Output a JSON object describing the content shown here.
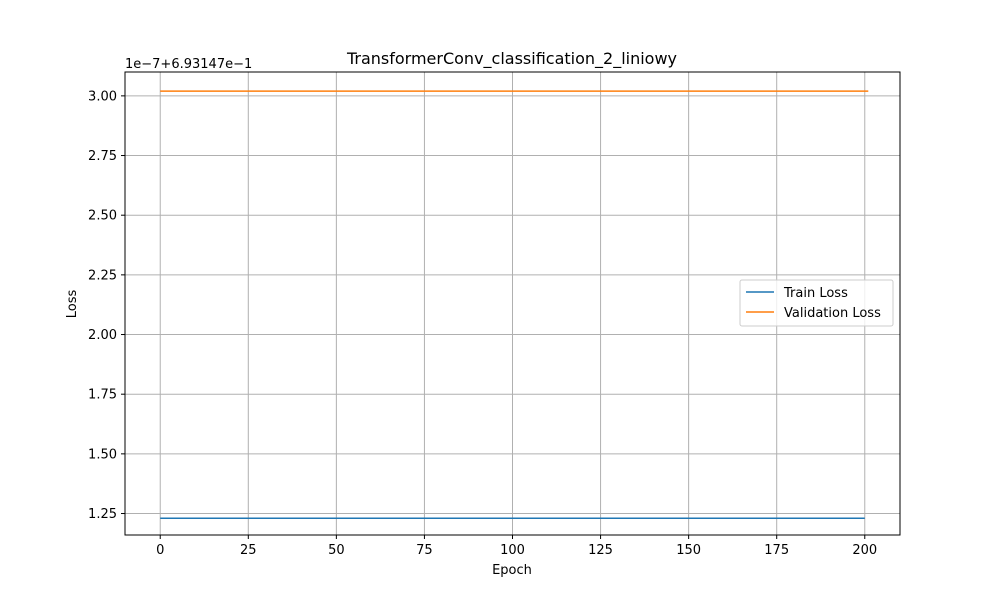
{
  "chart_data": {
    "type": "line",
    "title": "TransformerConv_classification_2_liniowy",
    "xlabel": "Epoch",
    "ylabel": "Loss",
    "y_offset_label": "1e−7+6.93147e−1",
    "xlim": [
      -10,
      210
    ],
    "ylim": [
      1.16,
      3.1
    ],
    "x_ticks": [
      0,
      25,
      50,
      75,
      100,
      125,
      150,
      175,
      200
    ],
    "x_tick_labels": [
      "0",
      "25",
      "50",
      "75",
      "100",
      "125",
      "150",
      "175",
      "200"
    ],
    "y_ticks": [
      1.25,
      1.5,
      1.75,
      2.0,
      2.25,
      2.5,
      2.75,
      3.0
    ],
    "y_tick_labels": [
      "1.25",
      "1.50",
      "1.75",
      "2.00",
      "2.25",
      "2.50",
      "2.75",
      "3.00"
    ],
    "grid": true,
    "legend_position": "center-right",
    "series": [
      {
        "name": "Train Loss",
        "color": "#1f77b4",
        "x": [
          0,
          200
        ],
        "y": [
          1.23,
          1.23
        ]
      },
      {
        "name": "Validation Loss",
        "color": "#ff7f0e",
        "x": [
          0,
          201
        ],
        "y": [
          3.02,
          3.02
        ]
      }
    ]
  }
}
